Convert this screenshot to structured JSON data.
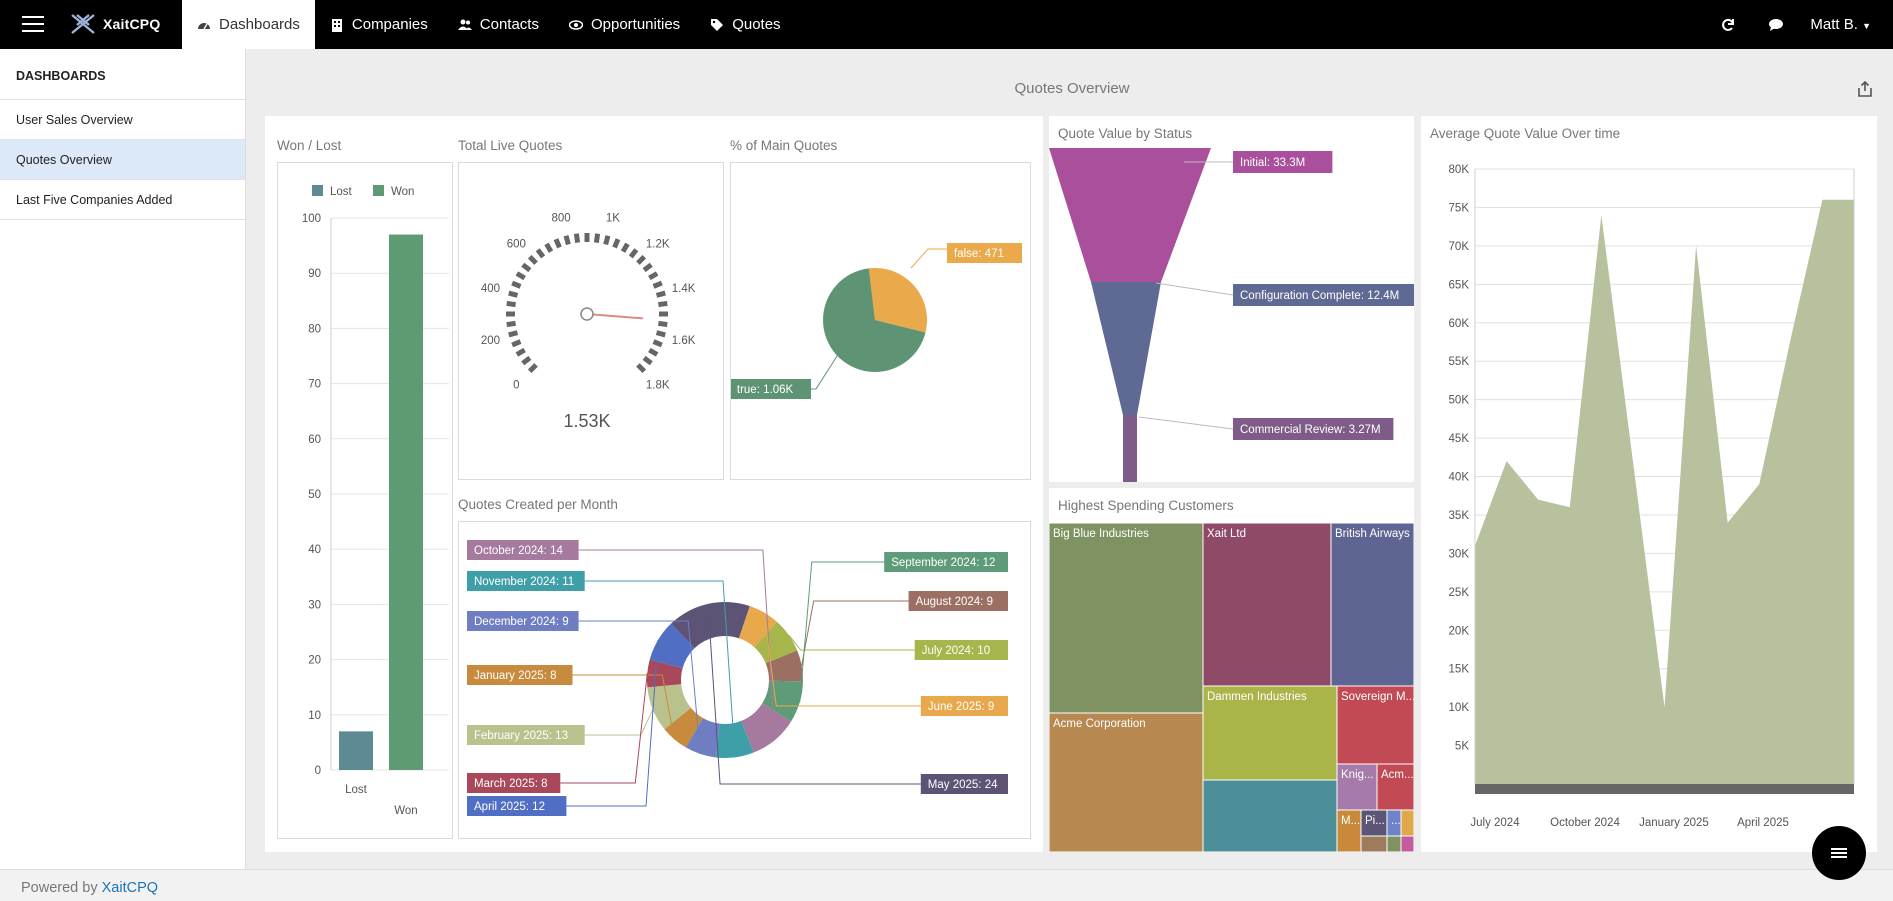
{
  "app": {
    "name": "XaitCPQ"
  },
  "nav": {
    "items": [
      {
        "label": "Dashboards",
        "icon": "dashboard-icon"
      },
      {
        "label": "Companies",
        "icon": "building-icon"
      },
      {
        "label": "Contacts",
        "icon": "users-icon"
      },
      {
        "label": "Opportunities",
        "icon": "eye-icon"
      },
      {
        "label": "Quotes",
        "icon": "tag-icon"
      }
    ],
    "user": "Matt B."
  },
  "sidebar": {
    "heading": "DASHBOARDS",
    "items": [
      {
        "label": "User Sales Overview"
      },
      {
        "label": "Quotes Overview",
        "active": true
      },
      {
        "label": "Last Five Companies Added"
      }
    ]
  },
  "page": {
    "title": "Quotes Overview"
  },
  "panels": {
    "won_lost": "Won / Lost",
    "total_live": "Total Live Quotes",
    "pct_main": "% of Main Quotes",
    "per_month": "Quotes Created per Month",
    "value_status": "Quote Value by Status",
    "top_customers": "Highest Spending Customers",
    "avg_value": "Average Quote Value Over time"
  },
  "footer": {
    "prefix": "Powered by ",
    "link": "XaitCPQ"
  },
  "chart_data": [
    {
      "id": "won_lost",
      "type": "bar",
      "categories": [
        "Lost",
        "Won"
      ],
      "series": [
        {
          "name": "Lost",
          "values": [
            7,
            null
          ],
          "color": "#5e8a94"
        },
        {
          "name": "Won",
          "values": [
            null,
            97
          ],
          "color": "#5e9a74"
        }
      ],
      "ylim": [
        0,
        100
      ],
      "yticks": [
        0,
        10,
        20,
        30,
        40,
        50,
        60,
        70,
        80,
        90,
        100
      ],
      "legend": "top"
    },
    {
      "id": "total_live",
      "type": "gauge",
      "value": 1530,
      "display": "1.53K",
      "range": [
        0,
        1800
      ],
      "ticks": [
        "0",
        "200",
        "400",
        "600",
        "800",
        "1K",
        "1.2K",
        "1.4K",
        "1.6K",
        "1.8K"
      ]
    },
    {
      "id": "pct_main",
      "type": "pie",
      "slices": [
        {
          "label": "false: 471",
          "value": 471,
          "color": "#eaa94a"
        },
        {
          "label": "true: 1.06K",
          "value": 1060,
          "color": "#5e9474"
        }
      ]
    },
    {
      "id": "per_month",
      "type": "pie",
      "donut": true,
      "slices": [
        {
          "label": "July 2024: 10",
          "value": 10,
          "color": "#a7b64c"
        },
        {
          "label": "August 2024: 9",
          "value": 9,
          "color": "#9b7063"
        },
        {
          "label": "September 2024: 12",
          "value": 12,
          "color": "#5e9b78"
        },
        {
          "label": "October 2024: 14",
          "value": 14,
          "color": "#a67a9f"
        },
        {
          "label": "November 2024: 11",
          "value": 11,
          "color": "#3f9fa8"
        },
        {
          "label": "December 2024: 9",
          "value": 9,
          "color": "#6f7ec2"
        },
        {
          "label": "January 2025: 8",
          "value": 8,
          "color": "#c88b3e"
        },
        {
          "label": "February 2025: 13",
          "value": 13,
          "color": "#b9c28d"
        },
        {
          "label": "March 2025: 8",
          "value": 8,
          "color": "#a8485a"
        },
        {
          "label": "April 2025: 12",
          "value": 12,
          "color": "#4f6ec4"
        },
        {
          "label": "May 2025: 24",
          "value": 24,
          "color": "#5c5375"
        },
        {
          "label": "June 2025: 9",
          "value": 9,
          "color": "#e8a84c"
        }
      ]
    },
    {
      "id": "value_status",
      "type": "funnel",
      "stages": [
        {
          "label": "Initial: 33.3M",
          "value": 33.3,
          "color": "#a94f9b"
        },
        {
          "label": "Configuration Complete: 12.4M",
          "value": 12.4,
          "color": "#5e6994"
        },
        {
          "label": "Commercial Review: 3.27M",
          "value": 3.27,
          "color": "#7e5b88"
        }
      ]
    },
    {
      "id": "top_customers",
      "type": "treemap",
      "items": [
        {
          "label": "Big Blue Industries",
          "color": "#7f9262"
        },
        {
          "label": "Xait Ltd",
          "color": "#8e4a67"
        },
        {
          "label": "British Airways",
          "color": "#5f6592"
        },
        {
          "label": "Acme Corporation",
          "color": "#b7884f"
        },
        {
          "label": "Dammen Industries",
          "color": "#a9b549"
        },
        {
          "label": "Sovereign M...",
          "color": "#c14a54"
        },
        {
          "label": "Knig...",
          "color": "#a67ba9"
        },
        {
          "label": "Acm...",
          "color": "#c14a54"
        },
        {
          "label": "M...",
          "color": "#c8893a"
        },
        {
          "label": "Pi...",
          "color": "#5b5676"
        },
        {
          "label": "...",
          "color": "#6f84c8"
        }
      ]
    },
    {
      "id": "avg_value",
      "type": "area",
      "x": [
        "2024-06",
        "2024-07",
        "2024-08",
        "2024-09",
        "2024-10",
        "2024-11",
        "2024-12",
        "2025-01",
        "2025-02",
        "2025-03",
        "2025-04",
        "2025-05",
        "2025-06"
      ],
      "values": [
        31000,
        42000,
        37000,
        36000,
        74000,
        42000,
        10000,
        70000,
        34000,
        39000,
        58000,
        76000,
        76000
      ],
      "ylim": [
        0,
        80000
      ],
      "yticks": [
        "5K",
        "10K",
        "15K",
        "20K",
        "25K",
        "30K",
        "35K",
        "40K",
        "45K",
        "50K",
        "55K",
        "60K",
        "65K",
        "70K",
        "75K",
        "80K"
      ],
      "xticks": [
        "July 2024",
        "October 2024",
        "January 2025",
        "April 2025"
      ],
      "color": "#b7c19e"
    }
  ]
}
